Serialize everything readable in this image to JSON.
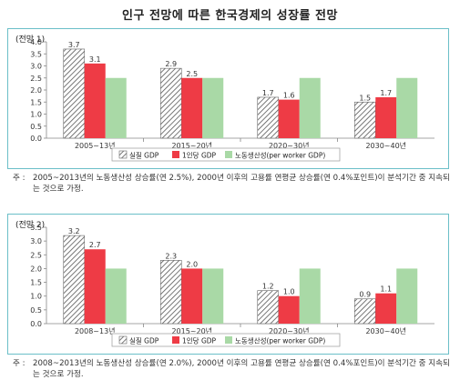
{
  "page_title": "인구 전망에 따른 한국경제의 성장률 전망",
  "chart_data": [
    {
      "type": "bar",
      "panel_label": "(전망 1)",
      "categories": [
        "2005~13년",
        "2015~20년",
        "2020~30년",
        "2030~40년"
      ],
      "series": [
        {
          "name": "실질 GDP",
          "values": [
            3.7,
            2.9,
            1.7,
            1.5
          ]
        },
        {
          "name": "1인당 GDP",
          "values": [
            3.1,
            2.5,
            1.6,
            1.7
          ]
        },
        {
          "name": "노동생산성(per worker GDP)",
          "values": [
            2.5,
            2.5,
            2.5,
            2.5
          ]
        }
      ],
      "labeled_series": [
        0,
        1
      ],
      "ylim": [
        0,
        4.0
      ],
      "ytick_step": 0.5,
      "yticks": [
        "0.0",
        "0.5",
        "1.0",
        "1.5",
        "2.0",
        "2.5",
        "3.0",
        "3.5",
        "4.0"
      ],
      "legend_position": "bottom"
    },
    {
      "type": "bar",
      "panel_label": "(전망 2)",
      "categories": [
        "2008~13년",
        "2015~20년",
        "2020~30년",
        "2030~40년"
      ],
      "series": [
        {
          "name": "실질 GDP",
          "values": [
            3.2,
            2.3,
            1.2,
            0.9
          ]
        },
        {
          "name": "1인당 GDP",
          "values": [
            2.7,
            2.0,
            1.0,
            1.1
          ]
        },
        {
          "name": "노동생산성(per worker GDP)",
          "values": [
            2.0,
            2.0,
            2.0,
            2.0
          ]
        }
      ],
      "labeled_series": [
        0,
        1
      ],
      "ylim": [
        0,
        3.5
      ],
      "ytick_step": 0.5,
      "yticks": [
        "0.0",
        "0.5",
        "1.0",
        "1.5",
        "2.0",
        "2.5",
        "3.0",
        "3.5"
      ],
      "legend_position": "bottom"
    }
  ],
  "notes": [
    {
      "mark": "주 :",
      "text": "2005~2013년의 노동생산성 상승률(연 2.5%), 2000년 이후의 고용률 연평균 상승률(연 0.4%포인트)이 분석기간 중 지속되는 것으로 가정."
    },
    {
      "mark": "주 :",
      "text": "2008~2013년의 노동생산성 상승률(연 2.0%), 2000년 이후의 고용률 연평균 상승률(연 0.4%포인트)이 분석기간 중 지속되는 것으로 가정."
    }
  ],
  "colors": {
    "real_gdp_hatch": "#555555",
    "real_gdp_bg": "#ffffff",
    "per_capita": "#ee3b45",
    "productivity": "#a9d9a6",
    "panel_border": "#6bbfc8",
    "axis": "#888888"
  }
}
